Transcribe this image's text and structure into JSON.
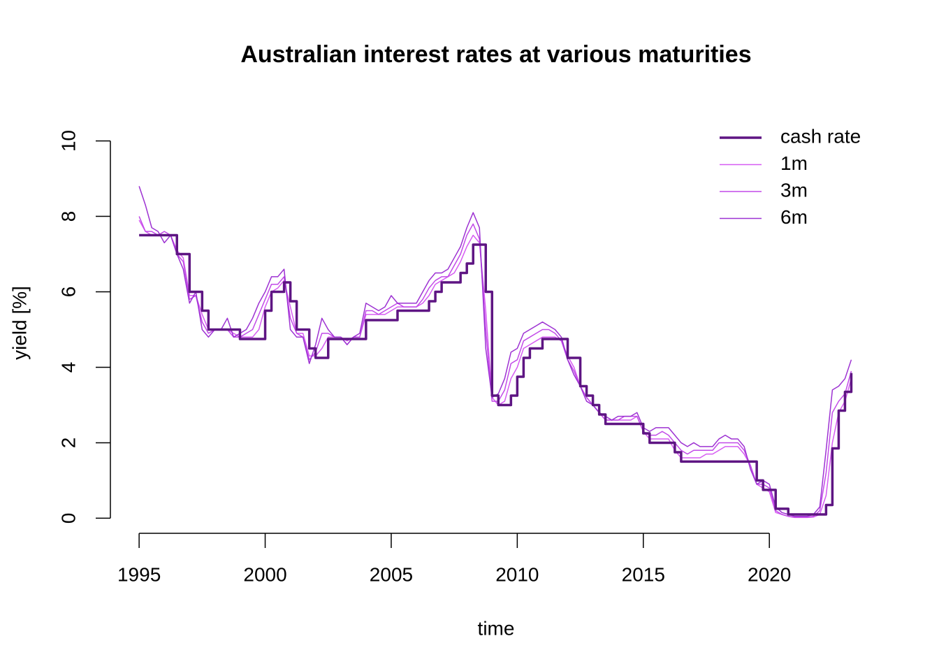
{
  "chart_data": {
    "type": "line",
    "title": "Australian interest rates at various maturities",
    "xlabel": "time",
    "ylabel": "yield [%]",
    "xlim": [
      1993.86,
      2024.54
    ],
    "ylim": [
      -0.4,
      10.4
    ],
    "xticks": [
      1995,
      2000,
      2005,
      2010,
      2015,
      2020
    ],
    "yticks": [
      0,
      2,
      4,
      6,
      8,
      10
    ],
    "legend": "top-right",
    "x": [
      1995,
      1995.25,
      1995.5,
      1995.75,
      1996,
      1996.25,
      1996.5,
      1996.75,
      1997,
      1997.25,
      1997.5,
      1997.75,
      1998,
      1998.25,
      1998.5,
      1998.75,
      1999,
      1999.25,
      1999.5,
      1999.75,
      2000,
      2000.25,
      2000.5,
      2000.75,
      2001,
      2001.25,
      2001.5,
      2001.75,
      2002,
      2002.25,
      2002.5,
      2002.75,
      2003,
      2003.25,
      2003.5,
      2003.75,
      2004,
      2004.25,
      2004.5,
      2004.75,
      2005,
      2005.25,
      2005.5,
      2005.75,
      2006,
      2006.25,
      2006.5,
      2006.75,
      2007,
      2007.25,
      2007.5,
      2007.75,
      2008,
      2008.25,
      2008.5,
      2008.75,
      2009,
      2009.25,
      2009.5,
      2009.75,
      2010,
      2010.25,
      2010.5,
      2010.75,
      2011,
      2011.25,
      2011.5,
      2011.75,
      2012,
      2012.25,
      2012.5,
      2012.75,
      2013,
      2013.25,
      2013.5,
      2013.75,
      2014,
      2014.25,
      2014.5,
      2014.75,
      2015,
      2015.25,
      2015.5,
      2015.75,
      2016,
      2016.25,
      2016.5,
      2016.75,
      2017,
      2017.25,
      2017.5,
      2017.75,
      2018,
      2018.25,
      2018.5,
      2018.75,
      2019,
      2019.25,
      2019.5,
      2019.75,
      2020,
      2020.25,
      2020.5,
      2020.75,
      2021,
      2021.25,
      2021.5,
      2021.75,
      2022,
      2022.25,
      2022.5,
      2022.75,
      2023,
      2023.25
    ],
    "series": [
      {
        "name": "1m",
        "color": "#d65cf2",
        "width": 1.5,
        "values": [
          7.9,
          7.6,
          7.5,
          7.5,
          7.5,
          7.5,
          7.1,
          6.9,
          5.9,
          5.9,
          5.4,
          5.0,
          5.0,
          5.0,
          5.0,
          4.9,
          4.8,
          4.8,
          4.8,
          5.0,
          5.6,
          6.0,
          6.1,
          6.3,
          5.6,
          4.9,
          4.9,
          4.3,
          4.3,
          4.5,
          4.8,
          4.8,
          4.8,
          4.7,
          4.8,
          4.8,
          5.4,
          5.4,
          5.4,
          5.4,
          5.5,
          5.6,
          5.6,
          5.6,
          5.6,
          5.7,
          5.9,
          6.2,
          6.3,
          6.4,
          6.5,
          6.8,
          7.2,
          7.5,
          7.3,
          5.5,
          3.2,
          3.0,
          3.1,
          3.7,
          4.0,
          4.5,
          4.6,
          4.7,
          4.8,
          4.8,
          4.8,
          4.7,
          4.3,
          4.0,
          3.5,
          3.2,
          3.0,
          2.8,
          2.6,
          2.6,
          2.6,
          2.6,
          2.6,
          2.7,
          2.3,
          2.1,
          2.1,
          2.1,
          2.1,
          1.8,
          1.6,
          1.6,
          1.6,
          1.6,
          1.7,
          1.7,
          1.8,
          1.9,
          1.9,
          1.9,
          1.7,
          1.4,
          0.9,
          0.8,
          0.7,
          0.15,
          0.1,
          0.05,
          0.02,
          0.02,
          0.02,
          0.03,
          0.1,
          0.6,
          2.0,
          2.8,
          3.1,
          3.7
        ]
      },
      {
        "name": "3m",
        "color": "#c24ae8",
        "width": 1.5,
        "values": [
          8.0,
          7.6,
          7.6,
          7.5,
          7.6,
          7.5,
          7.0,
          6.8,
          5.8,
          5.9,
          5.2,
          4.9,
          5.0,
          5.0,
          5.0,
          4.8,
          4.8,
          4.9,
          5.0,
          5.4,
          5.8,
          6.2,
          6.2,
          6.4,
          5.3,
          4.9,
          4.8,
          4.2,
          4.4,
          4.9,
          4.9,
          4.8,
          4.8,
          4.6,
          4.8,
          4.8,
          5.5,
          5.5,
          5.4,
          5.5,
          5.6,
          5.7,
          5.6,
          5.6,
          5.6,
          5.8,
          6.1,
          6.3,
          6.4,
          6.4,
          6.7,
          7.0,
          7.5,
          7.8,
          7.4,
          5.0,
          3.1,
          3.1,
          3.4,
          4.1,
          4.2,
          4.7,
          4.8,
          4.9,
          5.0,
          5.0,
          4.9,
          4.7,
          4.2,
          3.9,
          3.5,
          3.2,
          3.0,
          2.8,
          2.6,
          2.6,
          2.6,
          2.7,
          2.7,
          2.7,
          2.3,
          2.2,
          2.2,
          2.3,
          2.2,
          2.0,
          1.8,
          1.7,
          1.8,
          1.8,
          1.8,
          1.8,
          2.0,
          2.0,
          2.0,
          2.0,
          1.8,
          1.4,
          0.9,
          0.9,
          0.8,
          0.2,
          0.1,
          0.05,
          0.03,
          0.03,
          0.03,
          0.05,
          0.2,
          1.2,
          2.8,
          3.1,
          3.3,
          3.9
        ]
      },
      {
        "name": "6m",
        "color": "#9d32d2",
        "width": 1.5,
        "values": [
          8.8,
          8.3,
          7.7,
          7.6,
          7.3,
          7.5,
          7.0,
          6.6,
          5.7,
          6.0,
          5.0,
          4.8,
          5.0,
          5.0,
          5.3,
          4.8,
          4.9,
          5.0,
          5.3,
          5.7,
          6.0,
          6.4,
          6.4,
          6.6,
          5.0,
          4.8,
          4.8,
          4.1,
          4.6,
          5.3,
          5.0,
          4.8,
          4.8,
          4.6,
          4.8,
          4.9,
          5.7,
          5.6,
          5.5,
          5.6,
          5.9,
          5.7,
          5.7,
          5.7,
          5.7,
          6.0,
          6.3,
          6.5,
          6.5,
          6.6,
          6.9,
          7.2,
          7.7,
          8.1,
          7.7,
          4.5,
          3.2,
          3.3,
          3.7,
          4.4,
          4.5,
          4.9,
          5.0,
          5.1,
          5.2,
          5.1,
          5.0,
          4.8,
          4.2,
          3.8,
          3.5,
          3.1,
          3.0,
          2.8,
          2.7,
          2.6,
          2.7,
          2.7,
          2.7,
          2.8,
          2.4,
          2.3,
          2.4,
          2.4,
          2.4,
          2.2,
          2.0,
          1.9,
          2.0,
          1.9,
          1.9,
          1.9,
          2.1,
          2.2,
          2.1,
          2.1,
          1.9,
          1.3,
          0.9,
          1.0,
          0.9,
          0.3,
          0.15,
          0.1,
          0.05,
          0.05,
          0.05,
          0.1,
          0.3,
          1.8,
          3.4,
          3.5,
          3.7,
          4.2
        ]
      },
      {
        "name": "cash rate",
        "color": "#5e1583",
        "width": 3.5,
        "step": true,
        "values": [
          7.5,
          7.5,
          7.5,
          7.5,
          7.5,
          7.5,
          7.0,
          7.0,
          6.0,
          6.0,
          5.5,
          5.0,
          5.0,
          5.0,
          5.0,
          5.0,
          4.75,
          4.75,
          4.75,
          4.75,
          5.5,
          6.0,
          6.0,
          6.25,
          5.75,
          5.0,
          5.0,
          4.5,
          4.25,
          4.25,
          4.75,
          4.75,
          4.75,
          4.75,
          4.75,
          4.75,
          5.25,
          5.25,
          5.25,
          5.25,
          5.25,
          5.5,
          5.5,
          5.5,
          5.5,
          5.5,
          5.75,
          6.0,
          6.25,
          6.25,
          6.25,
          6.5,
          6.75,
          7.25,
          7.25,
          6.0,
          3.25,
          3.0,
          3.0,
          3.25,
          3.75,
          4.25,
          4.5,
          4.5,
          4.75,
          4.75,
          4.75,
          4.75,
          4.25,
          4.25,
          3.5,
          3.25,
          3.0,
          2.75,
          2.5,
          2.5,
          2.5,
          2.5,
          2.5,
          2.5,
          2.25,
          2.0,
          2.0,
          2.0,
          2.0,
          1.75,
          1.5,
          1.5,
          1.5,
          1.5,
          1.5,
          1.5,
          1.5,
          1.5,
          1.5,
          1.5,
          1.5,
          1.5,
          1.0,
          0.75,
          0.75,
          0.25,
          0.25,
          0.1,
          0.1,
          0.1,
          0.1,
          0.1,
          0.1,
          0.35,
          1.85,
          2.85,
          3.35,
          3.85
        ]
      }
    ],
    "legend_order": [
      3,
      0,
      1,
      2
    ]
  }
}
